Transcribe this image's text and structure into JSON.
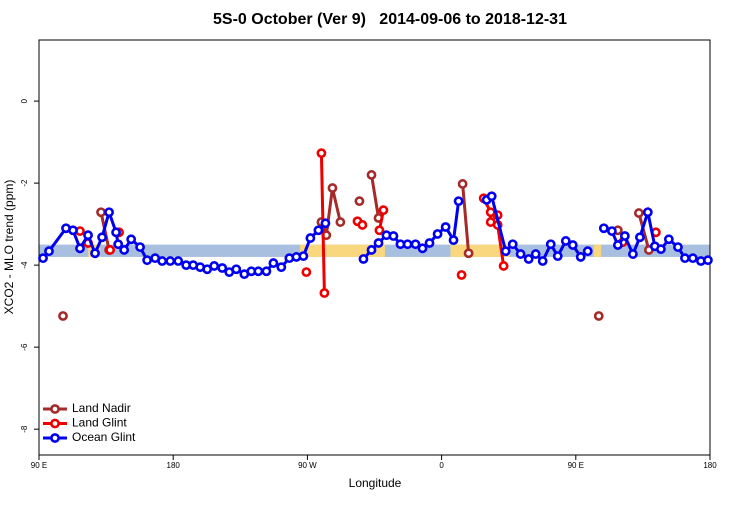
{
  "chart_data": {
    "type": "line",
    "title": "5S-0 October (Ver 9)   2014-09-06 to 2018-12-31",
    "xlabel": "Longitude",
    "ylabel": "XCO2 - MLO trend (ppm)",
    "xlim": [
      90,
      540
    ],
    "ylim": [
      -8.63,
      1.49
    ],
    "xticks": [
      {
        "value": 90,
        "label": "90 E"
      },
      180,
      {
        "value": 270,
        "label": "90 W"
      },
      {
        "value": 360,
        "label": "0"
      },
      {
        "value": 450,
        "label": "90 E"
      },
      {
        "value": 540,
        "label": "180"
      }
    ],
    "yticks": [
      0,
      -2,
      -4,
      -6,
      -8
    ],
    "legend": "bottom-left",
    "band": {
      "ylim": [
        -3.5,
        -3.8
      ],
      "color": "#a9bfe0",
      "highlight_color": "#f9d77e",
      "highlights": [
        [
          123,
          131
        ],
        [
          265,
          322
        ],
        [
          366,
          406
        ],
        [
          462,
          467
        ]
      ]
    },
    "series": [
      {
        "name": "Land Nadir",
        "color": "#a52a2a",
        "x": [
          106.1,
          null,
          131.6,
          137.0,
          null,
          279.4,
          282.7,
          286.8,
          292.1,
          null,
          304.9,
          null,
          313.0,
          317.7,
          null,
          374.1,
          378.1,
          null,
          465.4,
          null,
          478.2,
          null,
          492.3,
          499.0
        ],
        "values": [
          -5.24,
          null,
          -2.71,
          -3.63,
          null,
          -2.95,
          -3.27,
          -2.12,
          -2.95,
          null,
          -2.44,
          null,
          -1.8,
          -2.85,
          null,
          -2.02,
          -3.71,
          null,
          -5.24,
          null,
          -3.15,
          null,
          -2.73,
          -3.63
        ]
      },
      {
        "name": "Land Glint",
        "color": "#ee0000",
        "x": [
          117.5,
          null,
          122.9,
          null,
          137.7,
          null,
          143.7,
          null,
          269.3,
          null,
          279.4,
          281.4,
          null,
          303.6,
          null,
          306.9,
          null,
          318.3,
          321.0,
          null,
          373.4,
          null,
          388.2,
          392.9,
          392.9,
          397.6,
          397.6,
          401.6,
          null,
          481.5,
          null,
          503.7
        ],
        "values": [
          -3.17,
          null,
          -3.46,
          null,
          -3.63,
          null,
          -3.2,
          null,
          -4.17,
          null,
          -1.27,
          -4.68,
          null,
          -2.93,
          null,
          -3.02,
          null,
          -3.15,
          -2.66,
          null,
          -4.24,
          null,
          -2.37,
          -2.71,
          -2.95,
          -2.78,
          -3.02,
          -4.02,
          null,
          -3.44,
          null,
          -3.2
        ]
      },
      {
        "name": "Ocean Glint",
        "color": "#0000ee",
        "x": [
          92.7,
          96.7,
          108.1,
          112.8,
          117.5,
          122.9,
          127.6,
          132.3,
          137.0,
          141.7,
          143.1,
          147.1,
          151.8,
          157.8,
          162.5,
          167.9,
          172.6,
          178.0,
          183.4,
          188.7,
          193.4,
          198.1,
          202.8,
          207.5,
          212.9,
          217.6,
          222.3,
          227.7,
          232.4,
          237.1,
          242.5,
          247.2,
          252.5,
          257.9,
          262.6,
          267.3,
          272.0,
          277.4,
          282.1,
          null,
          307.6,
          313.0,
          317.7,
          323.0,
          327.7,
          332.4,
          337.2,
          342.5,
          347.2,
          351.9,
          357.3,
          362.7,
          368.0,
          371.4,
          null,
          390.2,
          393.6,
          403.0,
          407.7,
          413.0,
          418.4,
          423.1,
          427.8,
          433.2,
          437.9,
          443.3,
          448.0,
          453.3,
          458.0,
          null,
          468.8,
          474.2,
          478.2,
          482.9,
          488.3,
          493.0,
          498.3,
          503.0,
          507.1,
          512.4,
          518.5,
          523.2,
          528.5,
          533.9,
          538.6
        ],
        "values": [
          -3.83,
          -3.66,
          -3.1,
          -3.15,
          -3.59,
          -3.27,
          -3.71,
          -3.32,
          -2.71,
          -3.2,
          -3.49,
          -3.63,
          -3.37,
          -3.56,
          -3.88,
          -3.83,
          -3.9,
          -3.9,
          -3.9,
          -4.0,
          -4.0,
          -4.05,
          -4.1,
          -4.02,
          -4.07,
          -4.17,
          -4.1,
          -4.22,
          -4.15,
          -4.15,
          -4.15,
          -3.95,
          -4.05,
          -3.83,
          -3.8,
          -3.78,
          -3.34,
          -3.15,
          -2.98,
          null,
          -3.85,
          -3.63,
          -3.46,
          -3.27,
          -3.29,
          -3.49,
          -3.49,
          -3.49,
          -3.59,
          -3.46,
          -3.24,
          -3.07,
          -3.39,
          -2.44,
          null,
          -2.41,
          -2.32,
          -3.66,
          -3.49,
          -3.73,
          -3.85,
          -3.73,
          -3.9,
          -3.49,
          -3.78,
          -3.41,
          -3.51,
          -3.8,
          -3.66,
          null,
          -3.1,
          -3.17,
          -3.51,
          -3.29,
          -3.73,
          -3.32,
          -2.71,
          -3.54,
          -3.61,
          -3.37,
          -3.56,
          -3.83,
          -3.83,
          -3.9,
          -3.88
        ]
      }
    ]
  }
}
